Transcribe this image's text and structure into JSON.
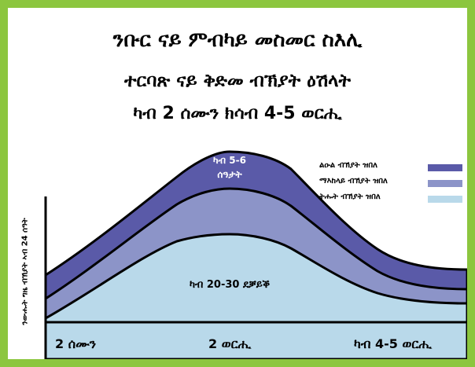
{
  "header": {
    "line1": "ንቡር ናይ ምብካይ መስመር ስእሊ",
    "line2": "ተርባጽ ናይ ቅድመ ብኽያት ዕሽላት",
    "line3": "ካብ 2 ሰሙን ክሳብ 4-5 ወርሒ"
  },
  "chart_data": {
    "type": "area",
    "ylabel": "ንውሑት ግዜ ብኽያት ኣብ 24 ሰዓት",
    "x_ticks": [
      "2 ሰሙን",
      "2 ወርሒ",
      "ካብ 4-5 ወርሒ"
    ],
    "annotations": {
      "peak": [
        "ካብ 5-6",
        "ሰዓታት"
      ],
      "base": "ካብ 20-30 ደቓይቕ"
    },
    "series": [
      {
        "name": "ልዑል ብኽያት ዝበለ",
        "color": "#5a5aa8"
      },
      {
        "name": "ማእከላይ ብኽያት ዝበለ",
        "color": "#8c94c8"
      },
      {
        "name": "ትሑት ብኽያት ዝበለ",
        "color": "#b9d9ea"
      }
    ]
  }
}
